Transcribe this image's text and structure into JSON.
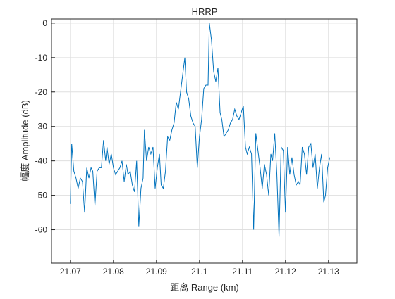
{
  "chart_data": {
    "type": "line",
    "title": "HRRP",
    "xlabel": "距离 Range (km)",
    "ylabel": "幅度 Amplitude (dB)",
    "x": [
      21.07,
      21.0703,
      21.0708,
      21.0713,
      21.0718,
      21.0723,
      21.0728,
      21.0733,
      21.0738,
      21.0743,
      21.0748,
      21.0752,
      21.0757,
      21.0762,
      21.0767,
      21.0772,
      21.0777,
      21.0782,
      21.0785,
      21.079,
      21.0795,
      21.08,
      21.0805,
      21.081,
      21.0815,
      21.082,
      21.0825,
      21.083,
      21.0834,
      21.0839,
      21.0844,
      21.0849,
      21.0854,
      21.0859,
      21.0864,
      21.0869,
      21.0872,
      21.0877,
      21.0882,
      21.0887,
      21.0892,
      21.0897,
      21.0902,
      21.0907,
      21.0911,
      21.0916,
      21.0921,
      21.0926,
      21.0931,
      21.0936,
      21.0941,
      21.0946,
      21.0951,
      21.0956,
      21.0961,
      21.0966,
      21.097,
      21.0975,
      21.098,
      21.0985,
      21.099,
      21.0995,
      21.1,
      21.1005,
      21.101,
      21.1015,
      21.102,
      21.1023,
      21.1028,
      21.1033,
      21.1038,
      21.1043,
      21.1048,
      21.1052,
      21.1057,
      21.1062,
      21.1067,
      21.1072,
      21.1077,
      21.1082,
      21.1087,
      21.1092,
      21.1097,
      21.1102,
      21.1107,
      21.1111,
      21.1116,
      21.1121,
      21.1126,
      21.1131,
      21.1136,
      21.1141,
      21.1146,
      21.1151,
      21.1156,
      21.1161,
      21.1166,
      21.117,
      21.1175,
      21.118,
      21.1185,
      21.119,
      21.1195,
      21.12,
      21.1205,
      21.121,
      21.1215,
      21.122,
      21.1225,
      21.123,
      21.1234,
      21.1239,
      21.1244,
      21.1249,
      21.1254,
      21.1259,
      21.1264,
      21.1269,
      21.1274,
      21.1279,
      21.1284,
      21.1289,
      21.1293,
      21.1298,
      21.1303
    ],
    "series": [
      {
        "color": "#0072bd",
        "values": [
          -52.5,
          -35,
          -43,
          -45,
          -48,
          -45,
          -46,
          -55,
          -42,
          -45,
          -42,
          -43,
          -53,
          -43,
          -42,
          -42,
          -34,
          -40,
          -36,
          -41,
          -38,
          -42,
          -44,
          -43,
          -42,
          -40,
          -46,
          -41,
          -44,
          -43,
          -47,
          -49,
          -40,
          -59,
          -48,
          -45,
          -31,
          -40,
          -36,
          -38,
          -36,
          -48,
          -42,
          -38,
          -47,
          -48,
          -43,
          -33,
          -34,
          -31,
          -29,
          -23,
          -25,
          -20,
          -15,
          -10,
          -20,
          -22,
          -27,
          -29,
          -30,
          -42,
          -33,
          -28,
          -19,
          -18,
          -18,
          0,
          -5,
          -14,
          -17,
          -13,
          -26,
          -28,
          -33,
          -32,
          -31,
          -29,
          -28,
          -25,
          -27,
          -28,
          -26,
          -24,
          -36,
          -38,
          -36,
          -38,
          -60,
          -32,
          -37,
          -42,
          -48,
          -41,
          -44,
          -50,
          -38,
          -40,
          -32,
          -44,
          -62,
          -36,
          -37,
          -55,
          -36,
          -44,
          -39,
          -44,
          -47,
          -46,
          -47,
          -36,
          -38,
          -44,
          -36,
          -35,
          -42,
          -38,
          -48,
          -42,
          -38,
          -52,
          -50,
          -42,
          -39
        ]
      }
    ],
    "xlim": [
      21.0656,
      21.1366
    ],
    "ylim": [
      -69.7,
      1.2
    ],
    "xticks": [
      21.07,
      21.08,
      21.09,
      21.1,
      21.11,
      21.12,
      21.13
    ],
    "yticks": [
      -60,
      -50,
      -40,
      -30,
      -20,
      -10,
      0
    ],
    "grid": true
  }
}
